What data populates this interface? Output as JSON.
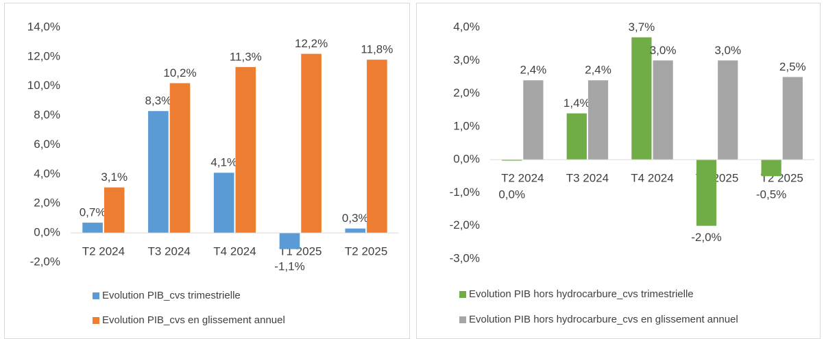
{
  "chart_data": [
    {
      "type": "bar",
      "categories": [
        "T2 2024",
        "T3 2024",
        "T4 2024",
        "T1 2025",
        "T2 2025"
      ],
      "series": [
        {
          "name": "Evolution PIB_cvs trimestrielle",
          "color": "#5b9bd5",
          "values": [
            0.7,
            8.3,
            4.1,
            -1.1,
            0.3
          ],
          "value_labels": [
            "0,7%",
            "8,3%",
            "4,1%",
            "-1,1%",
            "0,3%"
          ]
        },
        {
          "name": "Evolution PIB_cvs en glissement annuel",
          "color": "#ed7d31",
          "values": [
            3.1,
            10.2,
            11.3,
            12.2,
            11.8
          ],
          "value_labels": [
            "3,1%",
            "10,2%",
            "11,3%",
            "12,2%",
            "11,8%"
          ]
        }
      ],
      "ylim": [
        -2,
        14
      ],
      "yticks": [
        {
          "value": -2,
          "label": "-2,0%"
        },
        {
          "value": 0,
          "label": "0,0%"
        },
        {
          "value": 2,
          "label": "2,0%"
        },
        {
          "value": 4,
          "label": "4,0%"
        },
        {
          "value": 6,
          "label": "6,0%"
        },
        {
          "value": 8,
          "label": "8,0%"
        },
        {
          "value": 10,
          "label": "10,0%"
        },
        {
          "value": 12,
          "label": "12,0%"
        },
        {
          "value": 14,
          "label": "14,0%"
        }
      ],
      "grid": false,
      "legend": "bottom"
    },
    {
      "type": "bar",
      "categories": [
        "T2 2024",
        "T3 2024",
        "T4 2024",
        "T1 2025",
        "T2 2025"
      ],
      "series": [
        {
          "name": "Evolution PIB hors hydrocarbure_cvs trimestrielle",
          "color": "#70ad47",
          "values": [
            -0.03,
            1.4,
            3.7,
            -2.0,
            -0.5
          ],
          "value_labels": [
            "0,0%",
            "1,4%",
            "3,7%",
            "-2,0%",
            "-0,5%"
          ]
        },
        {
          "name": "Evolution PIB hors hydrocarbure_cvs en glissement annuel",
          "color": "#a5a5a5",
          "values": [
            2.4,
            2.4,
            3.0,
            3.0,
            2.5
          ],
          "value_labels": [
            "2,4%",
            "2,4%",
            "3,0%",
            "3,0%",
            "2,5%"
          ]
        }
      ],
      "ylim": [
        -3,
        4
      ],
      "yticks": [
        {
          "value": -3,
          "label": "-3,0%"
        },
        {
          "value": -2,
          "label": "-2,0%"
        },
        {
          "value": -1,
          "label": "-1,0%"
        },
        {
          "value": 0,
          "label": "0,0%"
        },
        {
          "value": 1,
          "label": "1,0%"
        },
        {
          "value": 2,
          "label": "2,0%"
        },
        {
          "value": 3,
          "label": "3,0%"
        },
        {
          "value": 4,
          "label": "4,0%"
        }
      ],
      "grid": false,
      "legend": "bottom"
    }
  ]
}
